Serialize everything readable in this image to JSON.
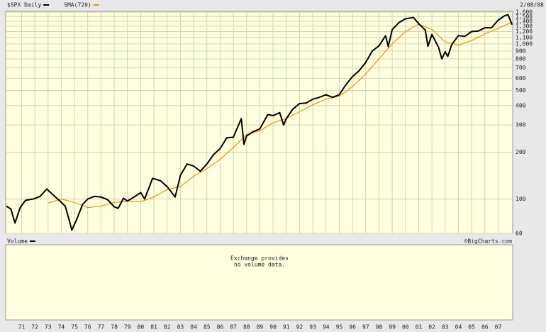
{
  "chart_data": {
    "type": "line",
    "log_y": true,
    "grid": true,
    "date": "2/08/08",
    "volume_label": "Volume",
    "copyright": "©BigCharts.com",
    "volume_note": [
      "Exchange provides",
      "no volume data."
    ],
    "xlim": [
      1969.8,
      2008.1
    ],
    "ylim": [
      60,
      1620
    ],
    "xticks": [
      {
        "value": 1971,
        "label": "71"
      },
      {
        "value": 1972,
        "label": "72"
      },
      {
        "value": 1973,
        "label": "73"
      },
      {
        "value": 1974,
        "label": "74"
      },
      {
        "value": 1975,
        "label": "75"
      },
      {
        "value": 1976,
        "label": "76"
      },
      {
        "value": 1977,
        "label": "77"
      },
      {
        "value": 1978,
        "label": "78"
      },
      {
        "value": 1979,
        "label": "79"
      },
      {
        "value": 1980,
        "label": "80"
      },
      {
        "value": 1981,
        "label": "81"
      },
      {
        "value": 1982,
        "label": "82"
      },
      {
        "value": 1983,
        "label": "83"
      },
      {
        "value": 1984,
        "label": "84"
      },
      {
        "value": 1985,
        "label": "85"
      },
      {
        "value": 1986,
        "label": "86"
      },
      {
        "value": 1987,
        "label": "87"
      },
      {
        "value": 1988,
        "label": "88"
      },
      {
        "value": 1989,
        "label": "89"
      },
      {
        "value": 1990,
        "label": "90"
      },
      {
        "value": 1991,
        "label": "91"
      },
      {
        "value": 1992,
        "label": "92"
      },
      {
        "value": 1993,
        "label": "93"
      },
      {
        "value": 1994,
        "label": "94"
      },
      {
        "value": 1995,
        "label": "95"
      },
      {
        "value": 1996,
        "label": "96"
      },
      {
        "value": 1997,
        "label": "97"
      },
      {
        "value": 1998,
        "label": "98"
      },
      {
        "value": 1999,
        "label": "99"
      },
      {
        "value": 2000,
        "label": "00"
      },
      {
        "value": 2001,
        "label": "01"
      },
      {
        "value": 2002,
        "label": "02"
      },
      {
        "value": 2003,
        "label": "03"
      },
      {
        "value": 2004,
        "label": "04"
      },
      {
        "value": 2005,
        "label": "05"
      },
      {
        "value": 2006,
        "label": "06"
      },
      {
        "value": 2007,
        "label": "07"
      }
    ],
    "yticks": [
      {
        "value": 1600,
        "label": "1,600"
      },
      {
        "value": 1500,
        "label": "1,500"
      },
      {
        "value": 1400,
        "label": "1,400"
      },
      {
        "value": 1300,
        "label": "1,300"
      },
      {
        "value": 1200,
        "label": "1,200"
      },
      {
        "value": 1100,
        "label": "1,100"
      },
      {
        "value": 1000,
        "label": "1,000"
      },
      900,
      800,
      700,
      600,
      500,
      400,
      300,
      200,
      100,
      60
    ],
    "series": [
      {
        "name": "$SPX Daily",
        "color": "#000000",
        "x": [
          1969.85,
          1970.2,
          1970.5,
          1970.9,
          1971.3,
          1971.9,
          1972.4,
          1972.9,
          1973.4,
          1973.9,
          1974.3,
          1974.6,
          1974.8,
          1975.2,
          1975.6,
          1976.0,
          1976.5,
          1977.0,
          1977.5,
          1978.0,
          1978.3,
          1978.7,
          1979.0,
          1979.5,
          1980.0,
          1980.3,
          1980.9,
          1981.5,
          1982.0,
          1982.6,
          1983.0,
          1983.5,
          1984.0,
          1984.5,
          1985.0,
          1985.5,
          1986.0,
          1986.5,
          1987.0,
          1987.6,
          1987.8,
          1988.0,
          1988.5,
          1989.0,
          1989.6,
          1990.0,
          1990.5,
          1990.8,
          1991.0,
          1991.5,
          1992.0,
          1992.5,
          1993.0,
          1993.5,
          1994.0,
          1994.5,
          1995.0,
          1995.5,
          1996.0,
          1996.5,
          1997.0,
          1997.5,
          1998.0,
          1998.5,
          1998.7,
          1999.0,
          1999.5,
          2000.0,
          2000.6,
          2001.0,
          2001.5,
          2001.7,
          2002.0,
          2002.5,
          2002.75,
          2003.0,
          2003.2,
          2003.5,
          2004.0,
          2004.5,
          2005.0,
          2005.5,
          2006.0,
          2006.5,
          2007.0,
          2007.5,
          2007.75,
          2008.05
        ],
        "values": [
          90,
          86,
          70,
          88,
          98,
          100,
          104,
          116,
          106,
          97,
          90,
          73,
          63,
          75,
          92,
          100,
          104,
          103,
          99,
          89,
          87,
          101,
          97,
          103,
          110,
          100,
          136,
          131,
          120,
          103,
          142,
          168,
          163,
          151,
          168,
          193,
          211,
          248,
          250,
          330,
          225,
          255,
          272,
          283,
          350,
          345,
          360,
          300,
          330,
          380,
          412,
          415,
          440,
          452,
          470,
          452,
          470,
          545,
          615,
          670,
          760,
          900,
          970,
          1130,
          960,
          1235,
          1370,
          1450,
          1480,
          1350,
          1225,
          965,
          1150,
          950,
          800,
          890,
          830,
          990,
          1130,
          1120,
          1200,
          1210,
          1270,
          1270,
          1420,
          1520,
          1540,
          1330
        ]
      },
      {
        "name": "SMA(720)",
        "color": "#e8920c",
        "x": [
          1973.0,
          1974.0,
          1975.0,
          1976.0,
          1977.0,
          1978.0,
          1979.0,
          1980.0,
          1981.0,
          1982.0,
          1983.0,
          1984.0,
          1985.0,
          1986.0,
          1987.0,
          1988.0,
          1989.0,
          1990.0,
          1991.0,
          1992.0,
          1993.0,
          1994.0,
          1995.0,
          1996.0,
          1997.0,
          1998.0,
          1999.0,
          2000.0,
          2001.0,
          2002.0,
          2003.0,
          2004.0,
          2005.0,
          2006.0,
          2007.0,
          2008.05
        ],
        "values": [
          94,
          100,
          95,
          88,
          90,
          95,
          97,
          96,
          103,
          115,
          120,
          140,
          157,
          180,
          215,
          260,
          275,
          310,
          330,
          365,
          405,
          440,
          460,
          530,
          640,
          800,
          1000,
          1200,
          1340,
          1240,
          1030,
          980,
          1050,
          1160,
          1260,
          1380
        ]
      }
    ]
  }
}
